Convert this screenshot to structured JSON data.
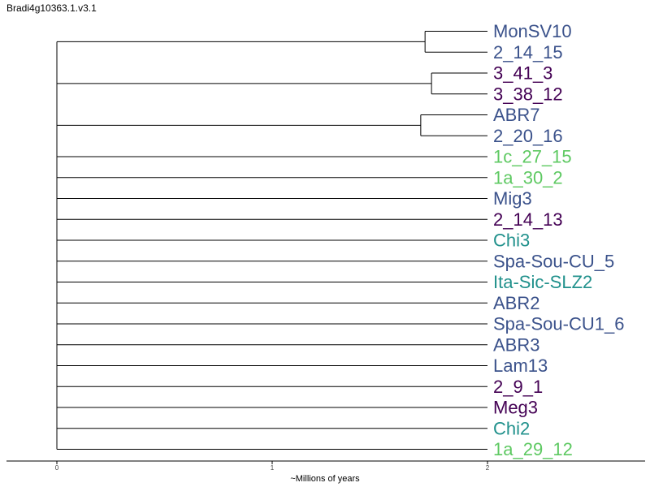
{
  "title": "Bradi4g10363.1.v3.1",
  "colors": {
    "blue": "#3b528b",
    "purple": "#440154",
    "green": "#5ec962",
    "teal": "#21918c",
    "branch": "#000000"
  },
  "chart_data": {
    "type": "dendrogram",
    "xlabel": "~Millions of years",
    "xlim": [
      0,
      2.5
    ],
    "xticks": [
      "0",
      "1",
      "2"
    ],
    "leaves": [
      {
        "name": "MonSV10",
        "color": "blue"
      },
      {
        "name": "2_14_15",
        "color": "blue"
      },
      {
        "name": "3_41_3",
        "color": "purple"
      },
      {
        "name": "3_38_12",
        "color": "purple"
      },
      {
        "name": "ABR7",
        "color": "blue"
      },
      {
        "name": "2_20_16",
        "color": "blue"
      },
      {
        "name": "1c_27_15",
        "color": "green"
      },
      {
        "name": "1a_30_2",
        "color": "green"
      },
      {
        "name": "Mig3",
        "color": "blue"
      },
      {
        "name": "2_14_13",
        "color": "purple"
      },
      {
        "name": "Chi3",
        "color": "teal"
      },
      {
        "name": "Spa-Sou-CU_5",
        "color": "blue"
      },
      {
        "name": "Ita-Sic-SLZ2",
        "color": "teal"
      },
      {
        "name": "ABR2",
        "color": "blue"
      },
      {
        "name": "Spa-Sou-CU1_6",
        "color": "blue"
      },
      {
        "name": "ABR3",
        "color": "blue"
      },
      {
        "name": "Lam13",
        "color": "blue"
      },
      {
        "name": "2_9_1",
        "color": "purple"
      },
      {
        "name": "Meg3",
        "color": "purple"
      },
      {
        "name": "Chi2",
        "color": "teal"
      },
      {
        "name": "1a_29_12",
        "color": "green"
      }
    ],
    "clusters": [
      {
        "leaves": [
          0,
          1
        ],
        "age": 1.71
      },
      {
        "leaves": [
          2,
          3
        ],
        "age": 1.74
      },
      {
        "leaves": [
          4,
          5
        ],
        "age": 1.69
      }
    ],
    "root_age": 2.0
  }
}
